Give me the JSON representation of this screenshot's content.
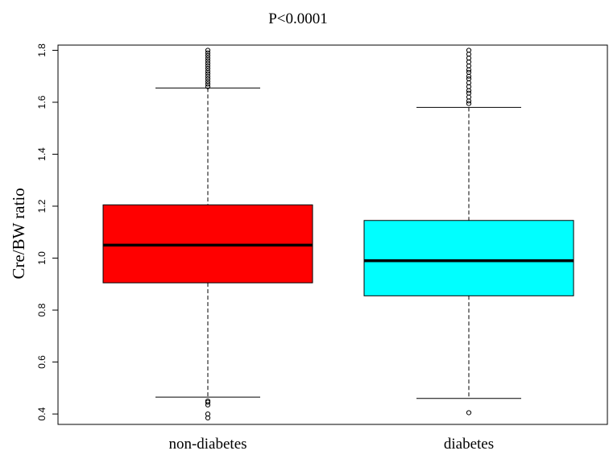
{
  "chart_data": {
    "type": "boxplot",
    "title": "P<0.0001",
    "xlabel": "",
    "ylabel": "Cre/BW ratio",
    "ylim": [
      0.36,
      1.82
    ],
    "yticks": [
      "0.4",
      "0.6",
      "0.8",
      "1.0",
      "1.2",
      "1.4",
      "1.6",
      "1.8"
    ],
    "grid": false,
    "categories": [
      "non-diabetes",
      "diabetes"
    ],
    "boxes": [
      {
        "category": "non-diabetes",
        "color": "#ff0000",
        "whisker_low": 0.465,
        "q1": 0.905,
        "median": 1.05,
        "q3": 1.205,
        "whisker_high": 1.655,
        "outliers_high": [
          1.66,
          1.67,
          1.68,
          1.69,
          1.7,
          1.71,
          1.72,
          1.73,
          1.74,
          1.75,
          1.76,
          1.77,
          1.78,
          1.79,
          1.8
        ],
        "outliers_low": [
          0.385,
          0.4,
          0.435,
          0.445,
          0.45
        ]
      },
      {
        "category": "diabetes",
        "color": "#00ffff",
        "whisker_low": 0.46,
        "q1": 0.855,
        "median": 0.99,
        "q3": 1.145,
        "whisker_high": 1.58,
        "outliers_high": [
          1.595,
          1.605,
          1.62,
          1.635,
          1.645,
          1.66,
          1.675,
          1.69,
          1.7,
          1.715,
          1.725,
          1.74,
          1.755,
          1.77,
          1.785,
          1.8
        ],
        "outliers_low": [
          0.405
        ]
      }
    ]
  }
}
